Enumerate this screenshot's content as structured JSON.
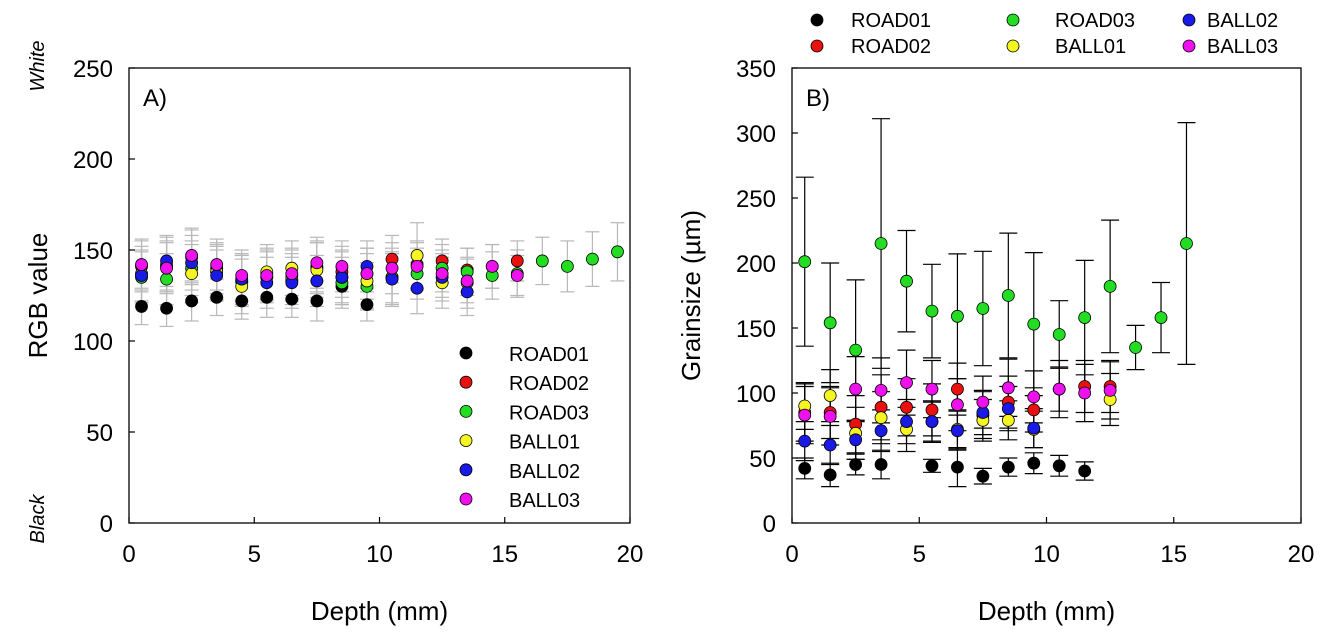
{
  "colors": {
    "ROAD01": "#000000",
    "ROAD02": "#e8110f",
    "ROAD03": "#22dd22",
    "BALL01": "#f5f522",
    "BALL02": "#1a1ae6",
    "BALL03": "#ee11ee",
    "errorbar_left": "#b8b8b8",
    "errorbar_right": "#000000"
  },
  "chart_data": [
    {
      "type": "scatter",
      "panel_label": "A)",
      "xlabel": "Depth (mm)",
      "ylabel": "RGB value",
      "top_annotation": "White",
      "bottom_annotation": "Black",
      "xlim": [
        0,
        20
      ],
      "ylim": [
        0,
        250
      ],
      "xticks": [
        0,
        5,
        10,
        15,
        20
      ],
      "yticks": [
        0,
        50,
        100,
        150,
        200,
        250
      ],
      "legend_position": "bottom-right",
      "legend": [
        "ROAD01",
        "ROAD02",
        "ROAD03",
        "BALL01",
        "BALL02",
        "BALL03"
      ],
      "series": [
        {
          "name": "ROAD01",
          "x": [
            0.5,
            1.5,
            2.5,
            3.5,
            4.5,
            5.5,
            6.5,
            7.5,
            8.5,
            9.5
          ],
          "y": [
            119,
            118,
            122,
            124,
            122,
            124,
            123,
            122,
            130,
            120
          ],
          "err": [
            10,
            10,
            11,
            10,
            10,
            11,
            10,
            11,
            10,
            9
          ]
        },
        {
          "name": "ROAD02",
          "x": [
            0.5,
            1.5,
            2.5,
            3.5,
            4.5,
            5.5,
            6.5,
            7.5,
            8.5,
            9.5,
            10.5,
            11.5,
            12.5,
            13.5,
            14.5,
            15.5
          ],
          "y": [
            141,
            141,
            146,
            140,
            133,
            137,
            136,
            141,
            138,
            137,
            145,
            142,
            144,
            139,
            141,
            144
          ],
          "err": [
            14,
            14,
            15,
            14,
            14,
            14,
            14,
            14,
            14,
            14,
            13,
            13,
            12,
            12,
            12,
            11
          ]
        },
        {
          "name": "ROAD03",
          "x": [
            0.5,
            1.5,
            2.5,
            3.5,
            4.5,
            5.5,
            6.5,
            7.5,
            8.5,
            9.5,
            10.5,
            11.5,
            12.5,
            13.5,
            14.5,
            15.5,
            16.5,
            17.5,
            18.5,
            19.5
          ],
          "y": [
            135,
            134,
            140,
            138,
            133,
            135,
            134,
            140,
            132,
            130,
            135,
            137,
            140,
            138,
            136,
            137,
            144,
            141,
            145,
            149
          ],
          "err": [
            14,
            14,
            15,
            14,
            14,
            14,
            14,
            14,
            14,
            13,
            14,
            14,
            13,
            13,
            13,
            13,
            13,
            14,
            15,
            16
          ]
        },
        {
          "name": "BALL01",
          "x": [
            0.5,
            1.5,
            2.5,
            3.5,
            4.5,
            5.5,
            6.5,
            7.5,
            8.5,
            9.5,
            10.5,
            11.5,
            12.5,
            13.5
          ],
          "y": [
            137,
            142,
            137,
            138,
            130,
            138,
            140,
            139,
            135,
            133,
            135,
            147,
            132,
            132
          ],
          "err": [
            15,
            15,
            16,
            15,
            15,
            15,
            15,
            15,
            15,
            15,
            16,
            18,
            14,
            14
          ]
        },
        {
          "name": "BALL02",
          "x": [
            0.5,
            1.5,
            2.5,
            3.5,
            4.5,
            5.5,
            6.5,
            7.5,
            8.5,
            9.5,
            10.5,
            11.5,
            12.5,
            13.5
          ],
          "y": [
            136,
            144,
            143,
            136,
            134,
            132,
            132,
            133,
            135,
            141,
            134,
            129,
            135,
            127
          ],
          "err": [
            14,
            14,
            15,
            14,
            14,
            14,
            14,
            14,
            14,
            14,
            14,
            14,
            13,
            13
          ]
        },
        {
          "name": "BALL03",
          "x": [
            0.5,
            1.5,
            2.5,
            3.5,
            4.5,
            5.5,
            6.5,
            7.5,
            8.5,
            9.5,
            10.5,
            11.5,
            12.5,
            13.5,
            14.5,
            15.5
          ],
          "y": [
            142,
            140,
            147,
            142,
            136,
            136,
            137,
            143,
            141,
            137,
            140,
            141,
            137,
            133,
            141,
            136
          ],
          "err": [
            14,
            14,
            15,
            14,
            14,
            14,
            14,
            14,
            14,
            14,
            14,
            13,
            13,
            12,
            12,
            11
          ]
        }
      ]
    },
    {
      "type": "scatter",
      "panel_label": "B)",
      "xlabel": "Depth (mm)",
      "ylabel": "Grainsize (µm)",
      "xlim": [
        0,
        20
      ],
      "ylim": [
        0,
        350
      ],
      "xticks": [
        0,
        5,
        10,
        15,
        20
      ],
      "yticks": [
        0,
        50,
        100,
        150,
        200,
        250,
        300,
        350
      ],
      "legend_position": "top, outside",
      "legend": [
        "ROAD01",
        "ROAD02",
        "ROAD03",
        "BALL01",
        "BALL02",
        "BALL03"
      ],
      "series": [
        {
          "name": "ROAD01",
          "x": [
            0.5,
            1.5,
            2.5,
            3.5,
            5.5,
            6.5,
            7.5,
            8.5,
            9.5,
            10.5,
            11.5
          ],
          "y": [
            42,
            37,
            45,
            45,
            44,
            43,
            36,
            43,
            46,
            44,
            40
          ],
          "err": [
            8,
            9,
            8,
            11,
            5,
            15,
            6,
            7,
            8,
            8,
            7
          ]
        },
        {
          "name": "ROAD02",
          "x": [
            0.5,
            1.5,
            2.5,
            3.5,
            4.5,
            5.5,
            6.5,
            7.5,
            8.5,
            9.5,
            10.5,
            11.5,
            12.5
          ],
          "y": [
            85,
            85,
            76,
            89,
            89,
            87,
            103,
            83,
            93,
            87,
            103,
            105,
            105
          ],
          "err": [
            22,
            20,
            22,
            25,
            22,
            20,
            20,
            18,
            20,
            17,
            17,
            20,
            20
          ]
        },
        {
          "name": "ROAD03",
          "x": [
            0.5,
            1.5,
            2.5,
            3.5,
            4.5,
            5.5,
            6.5,
            7.5,
            8.5,
            9.5,
            10.5,
            11.5,
            12.5,
            13.5,
            14.5,
            15.5
          ],
          "y": [
            201,
            154,
            133,
            215,
            186,
            163,
            159,
            165,
            175,
            153,
            145,
            158,
            182,
            135,
            158,
            215
          ],
          "err": [
            65,
            46,
            54,
            96,
            39,
            36,
            48,
            44,
            48,
            55,
            26,
            44,
            51,
            17,
            27,
            93
          ]
        },
        {
          "name": "BALL01",
          "x": [
            0.5,
            1.5,
            2.5,
            3.5,
            4.5,
            5.5,
            6.5,
            7.5,
            8.5,
            9.5,
            12.5
          ],
          "y": [
            90,
            98,
            69,
            81,
            72,
            78,
            72,
            79,
            79,
            72,
            95
          ],
          "err": [
            18,
            20,
            20,
            20,
            17,
            15,
            15,
            16,
            15,
            14,
            20
          ]
        },
        {
          "name": "BALL02",
          "x": [
            0.5,
            1.5,
            2.5,
            3.5,
            4.5,
            5.5,
            6.5,
            7.5,
            8.5,
            9.5
          ],
          "y": [
            63,
            60,
            64,
            71,
            78,
            78,
            71,
            85,
            88,
            73
          ],
          "err": [
            15,
            15,
            15,
            16,
            17,
            16,
            15,
            17,
            17,
            15
          ]
        },
        {
          "name": "BALL03",
          "x": [
            0.5,
            1.5,
            2.5,
            3.5,
            4.5,
            5.5,
            6.5,
            7.5,
            8.5,
            9.5,
            10.5,
            11.5,
            12.5
          ],
          "y": [
            83,
            82,
            103,
            102,
            108,
            103,
            91,
            93,
            104,
            97,
            103,
            100,
            102
          ],
          "err": [
            22,
            22,
            25,
            25,
            25,
            22,
            20,
            20,
            22,
            20,
            22,
            22,
            22
          ]
        }
      ]
    }
  ]
}
